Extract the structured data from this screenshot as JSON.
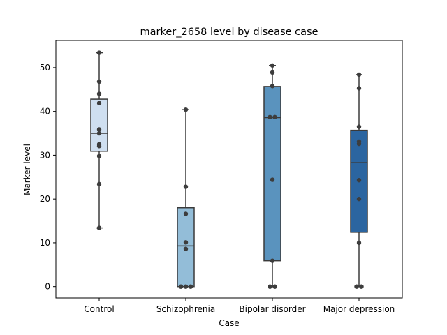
{
  "chart_data": {
    "type": "box",
    "title": "marker_2658 level by disease case",
    "xlabel": "Case",
    "ylabel": "Marker level",
    "ylim": [
      -2.6,
      56.2
    ],
    "yticks": [
      0,
      10,
      20,
      30,
      40,
      50
    ],
    "grid": false,
    "categories": [
      "Control",
      "Schizophrenia",
      "Bipolar disorder",
      "Major depression"
    ],
    "colors": [
      "#cfdff0",
      "#93bdd8",
      "#5a93be",
      "#2b65a0"
    ],
    "boxes": [
      {
        "whisker_low": 13.4,
        "q1": 30.9,
        "median": 35.0,
        "q3": 42.8,
        "whisker_high": 53.4
      },
      {
        "whisker_low": 0.0,
        "q1": 0.0,
        "median": 9.3,
        "q3": 18.0,
        "whisker_high": 40.4
      },
      {
        "whisker_low": 0.0,
        "q1": 5.9,
        "median": 38.6,
        "q3": 45.7,
        "whisker_high": 50.5
      },
      {
        "whisker_low": 0.0,
        "q1": 12.4,
        "median": 28.3,
        "q3": 35.7,
        "whisker_high": 48.4
      }
    ],
    "points": [
      [
        53.4,
        46.8,
        44.0,
        41.9,
        35.9,
        35.0,
        32.5,
        32.1,
        29.8,
        23.4,
        13.4
      ],
      [
        40.4,
        22.8,
        16.6,
        10.1,
        8.6,
        0.0,
        0.0,
        0.0
      ],
      [
        50.5,
        48.9,
        45.8,
        38.7,
        38.7,
        24.4,
        5.9,
        0.0,
        0.0
      ],
      [
        48.4,
        45.3,
        36.5,
        33.1,
        32.6,
        24.3,
        20.0,
        10.0,
        0.0,
        0.0
      ]
    ]
  }
}
